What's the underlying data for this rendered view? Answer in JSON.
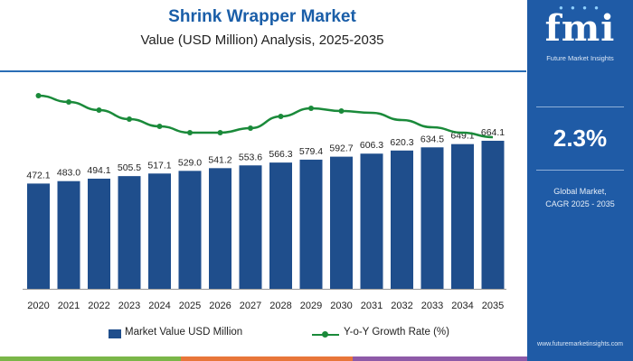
{
  "header": {
    "title": "Shrink Wrapper Market",
    "subtitle": "Value (USD Million) Analysis, 2025-2035"
  },
  "sidebar": {
    "logo_text": "fmi",
    "logo_subtitle": "Future Market Insights",
    "cagr_value": "2.3%",
    "cagr_label_line1": "Global Market,",
    "cagr_label_line2": "CAGR 2025 - 2035",
    "website": "www.futuremarketinsights.com"
  },
  "colors": {
    "bar": "#1f4e8c",
    "line": "#1a8a3a",
    "sidebar": "#1f5ba6",
    "title": "#1a5ea8"
  },
  "chart_data": {
    "type": "bar",
    "categories": [
      "2020",
      "2021",
      "2022",
      "2023",
      "2024",
      "2025",
      "2026",
      "2027",
      "2028",
      "2029",
      "2030",
      "2031",
      "2032",
      "2033",
      "2034",
      "2035"
    ],
    "series": [
      {
        "name": "Market Value USD Million",
        "type": "bar",
        "values": [
          472.1,
          483.0,
          494.1,
          505.5,
          517.1,
          529.0,
          541.2,
          553.6,
          566.3,
          579.4,
          592.7,
          606.3,
          620.3,
          634.5,
          649.1,
          664.1
        ],
        "labels": [
          "472.1",
          "483.0",
          "494.1",
          "505.5",
          "517.1",
          "529.0",
          "541.2",
          "553.6",
          "566.3",
          "579.4",
          "592.7",
          "606.3",
          "620.3",
          "634.5",
          "649.1",
          "664.1"
        ]
      },
      {
        "name": "Y-o-Y Growth Rate (%)",
        "type": "line",
        "values": [
          2.9,
          2.3,
          2.3,
          2.3,
          2.3,
          2.3,
          2.3,
          2.3,
          2.3,
          2.3,
          2.3,
          2.3,
          2.3,
          2.3,
          2.3,
          2.3
        ]
      }
    ],
    "legend_position": "bottom",
    "grid": false
  }
}
